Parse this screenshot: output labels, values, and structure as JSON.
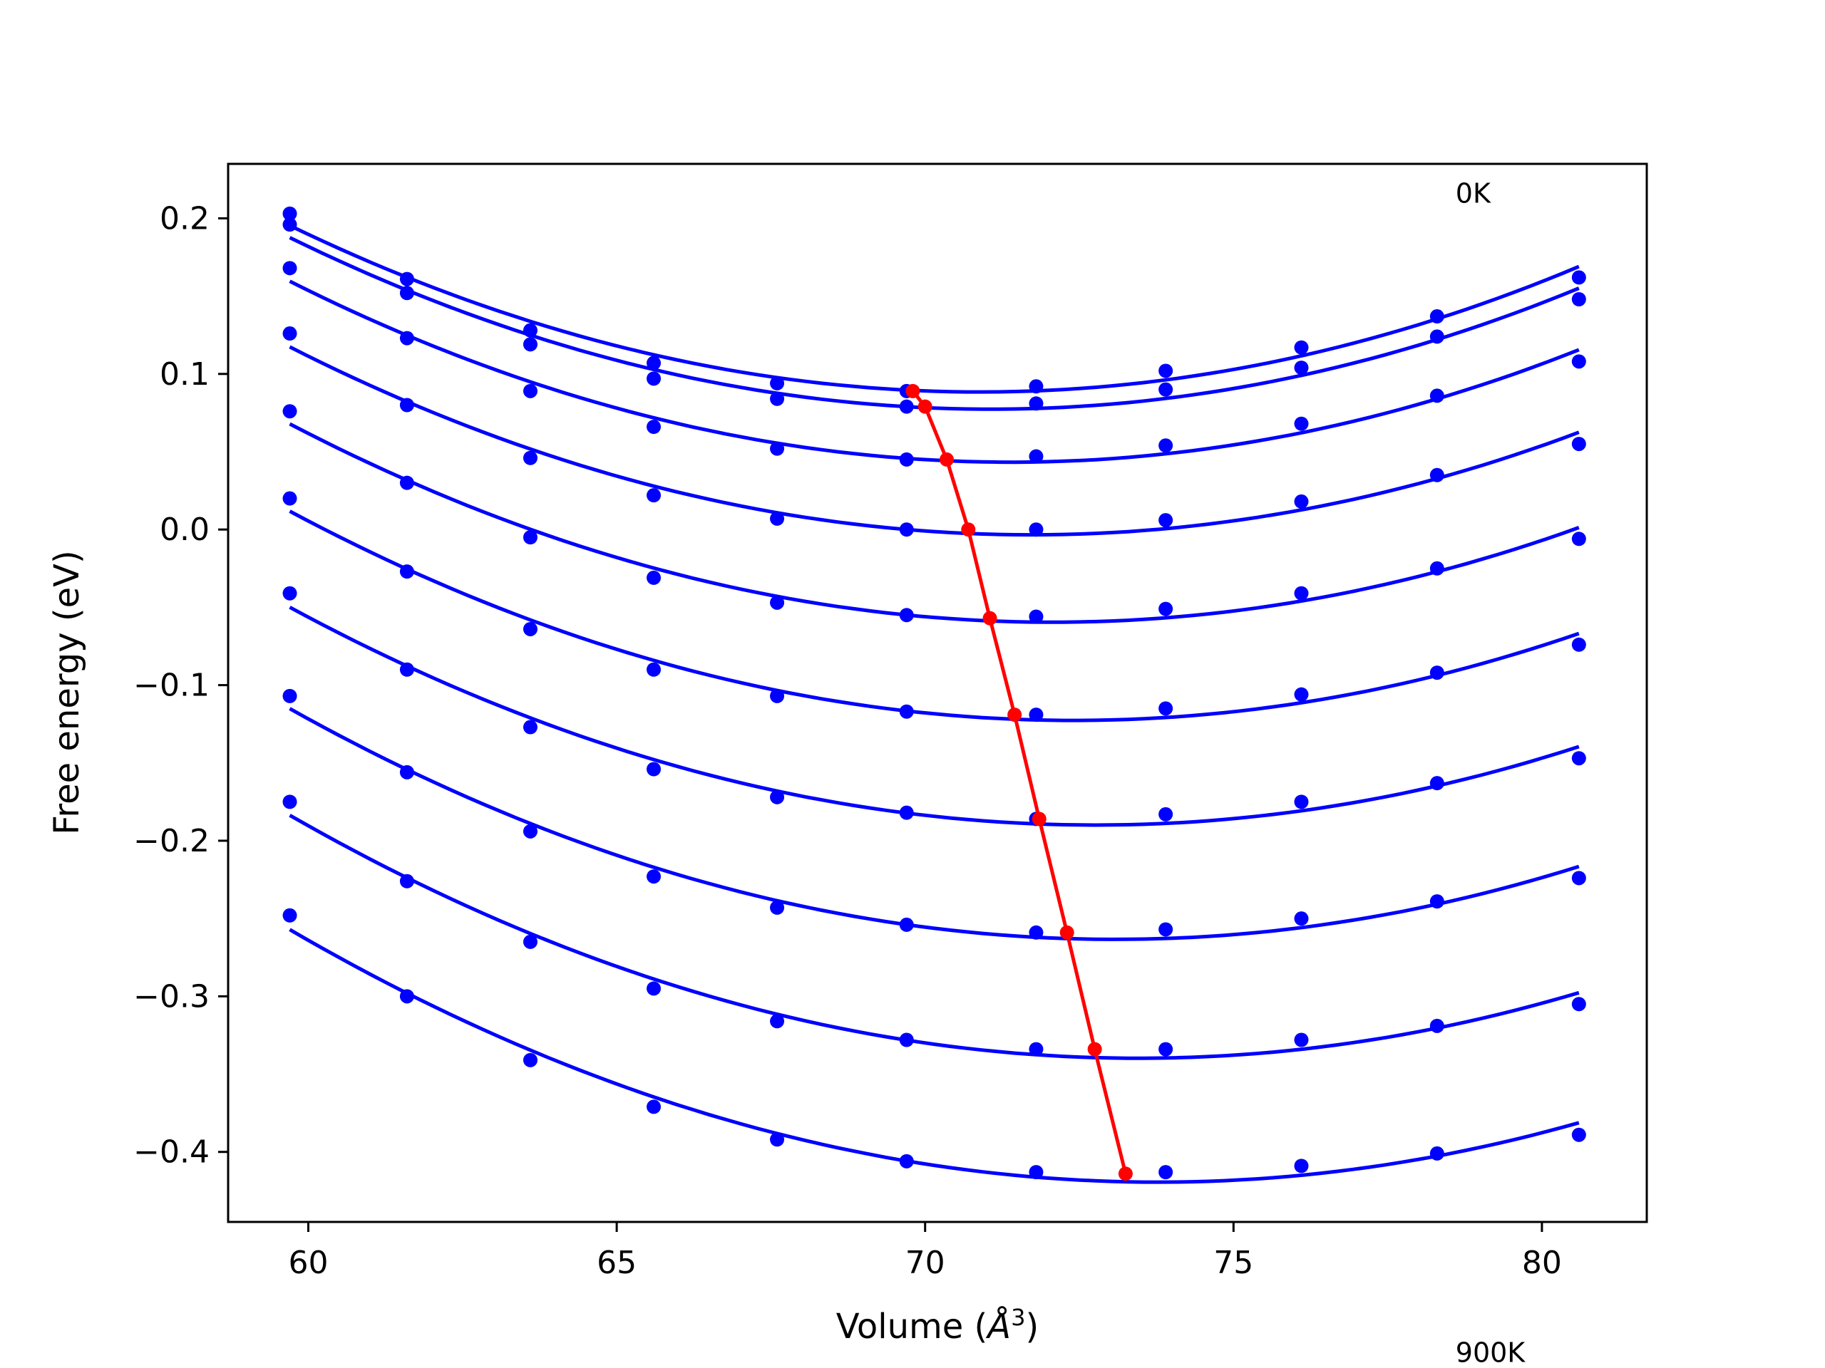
{
  "chart_data": {
    "type": "line",
    "xlabel": "Volume (",
    "xlabel_unit": "Å",
    "xlabel_exp": "3",
    "xlabel_close": ")",
    "ylabel": "Free energy (eV)",
    "xlim": [
      58.7,
      81.7
    ],
    "ylim": [
      -0.445,
      0.235
    ],
    "x_ticks": [
      60,
      65,
      70,
      75,
      80
    ],
    "x_tick_labels": [
      "60",
      "65",
      "70",
      "75",
      "80"
    ],
    "y_ticks": [
      0.2,
      0.1,
      0.0,
      -0.1,
      -0.2,
      -0.3,
      -0.4
    ],
    "y_tick_labels": [
      "0.2",
      "0.1",
      "0.0",
      "−0.1",
      "−0.2",
      "−0.3",
      "−0.4"
    ],
    "grid": false,
    "annotations": [
      {
        "text": "0K",
        "x": 78.6,
        "y": 0.21
      },
      {
        "text": "900K",
        "x": 78.6,
        "y": -0.535
      }
    ],
    "colors": {
      "curves": "#0000ff",
      "minima": "#ff0000"
    },
    "x": [
      59.7,
      61.6,
      63.6,
      65.6,
      67.6,
      69.7,
      71.8,
      73.9,
      76.1,
      78.3,
      80.6
    ],
    "series": [
      {
        "values": [
          0.203,
          0.161,
          0.128,
          0.107,
          0.094,
          0.089,
          0.092,
          0.102,
          0.117,
          0.137,
          0.162
        ]
      },
      {
        "values": [
          0.196,
          0.152,
          0.119,
          0.097,
          0.084,
          0.079,
          0.081,
          0.09,
          0.104,
          0.124,
          0.148
        ]
      },
      {
        "values": [
          0.168,
          0.123,
          0.089,
          0.066,
          0.052,
          0.045,
          0.047,
          0.054,
          0.068,
          0.086,
          0.108
        ]
      },
      {
        "values": [
          0.126,
          0.08,
          0.046,
          0.022,
          0.007,
          0.0,
          0.0,
          0.006,
          0.018,
          0.035,
          0.055
        ]
      },
      {
        "values": [
          0.076,
          0.03,
          -0.005,
          -0.031,
          -0.047,
          -0.055,
          -0.056,
          -0.051,
          -0.041,
          -0.025,
          -0.006
        ]
      },
      {
        "values": [
          0.02,
          -0.027,
          -0.064,
          -0.09,
          -0.107,
          -0.117,
          -0.119,
          -0.115,
          -0.106,
          -0.092,
          -0.074
        ]
      },
      {
        "values": [
          -0.041,
          -0.09,
          -0.127,
          -0.154,
          -0.172,
          -0.182,
          -0.186,
          -0.183,
          -0.175,
          -0.163,
          -0.147
        ]
      },
      {
        "values": [
          -0.107,
          -0.156,
          -0.194,
          -0.223,
          -0.243,
          -0.254,
          -0.259,
          -0.257,
          -0.25,
          -0.239,
          -0.224
        ]
      },
      {
        "values": [
          -0.175,
          -0.226,
          -0.265,
          -0.295,
          -0.316,
          -0.328,
          -0.334,
          -0.334,
          -0.328,
          -0.319,
          -0.305
        ]
      },
      {
        "values": [
          -0.248,
          -0.3,
          -0.341,
          -0.371,
          -0.392,
          -0.406,
          -0.413,
          -0.413,
          -0.409,
          -0.401,
          -0.389
        ]
      }
    ],
    "minima": {
      "x": [
        69.8,
        70.0,
        70.35,
        70.7,
        71.05,
        71.45,
        71.85,
        72.3,
        72.75,
        73.25
      ],
      "y": [
        0.089,
        0.079,
        0.045,
        0.0,
        -0.057,
        -0.119,
        -0.186,
        -0.259,
        -0.334,
        -0.414
      ]
    }
  }
}
